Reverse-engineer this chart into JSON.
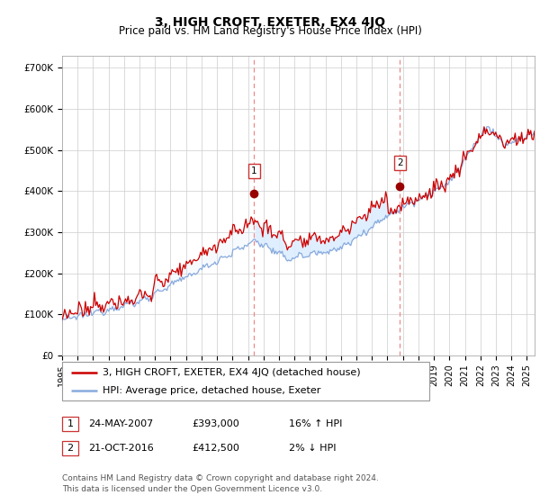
{
  "title": "3, HIGH CROFT, EXETER, EX4 4JQ",
  "subtitle": "Price paid vs. HM Land Registry's House Price Index (HPI)",
  "ylabel_ticks": [
    "£0",
    "£100K",
    "£200K",
    "£300K",
    "£400K",
    "£500K",
    "£600K",
    "£700K"
  ],
  "ylim": [
    0,
    730000
  ],
  "yticks": [
    0,
    100000,
    200000,
    300000,
    400000,
    500000,
    600000,
    700000
  ],
  "xmin": 1995.0,
  "xmax": 2025.5,
  "purchase1_x": 2007.388,
  "purchase1_y": 393000,
  "purchase1_label": "1",
  "purchase1_date": "24-MAY-2007",
  "purchase1_price": "£393,000",
  "purchase1_hpi": "16% ↑ HPI",
  "purchase2_x": 2016.805,
  "purchase2_y": 412500,
  "purchase2_label": "2",
  "purchase2_date": "21-OCT-2016",
  "purchase2_price": "£412,500",
  "purchase2_hpi": "2% ↓ HPI",
  "line1_color": "#cc0000",
  "line2_color": "#88aadd",
  "shade_color": "#ddeeff",
  "grid_color": "#cccccc",
  "legend_label1": "3, HIGH CROFT, EXETER, EX4 4JQ (detached house)",
  "legend_label2": "HPI: Average price, detached house, Exeter",
  "footer": "Contains HM Land Registry data © Crown copyright and database right 2024.\nThis data is licensed under the Open Government Licence v3.0.",
  "marker_color": "#990000",
  "vline_color": "#ee8888",
  "title_fontsize": 10,
  "subtitle_fontsize": 8.5,
  "tick_fontsize": 7.5,
  "legend_fontsize": 8,
  "footer_fontsize": 6.5
}
